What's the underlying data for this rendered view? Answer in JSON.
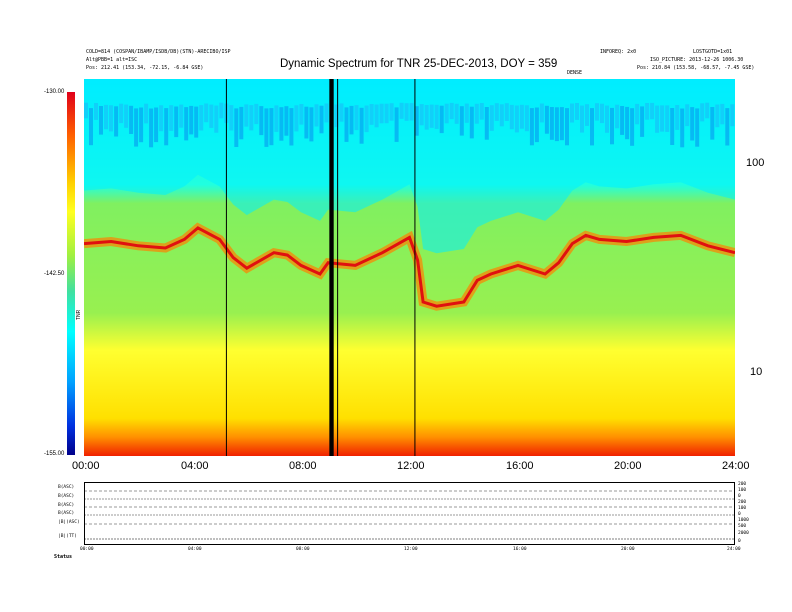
{
  "header": {
    "left_lines": [
      "COLD=814 (COSPAN/IBAMP/ISDB/DB)(STN)-ARECIBO/ISP",
      "Alt@PBB=1 alt=ISC",
      "Pos: 212.41 (153.34, -72.15, -6.84 GSE)"
    ],
    "right_lines": [
      "INFOREQ: 2x0",
      "LOSTGOTD=1x01",
      "ISO_PICTURE: 2013-12-26 1006.30",
      "Pos: 210.84 (153.58, -68.57, -7.45 GSE)"
    ],
    "center_tag": "DENSE"
  },
  "chart_data": {
    "type": "heatmap",
    "title": "Dynamic Spectrum for TNR 25-DEC-2013, DOY = 359",
    "x_ticks": [
      "00:00",
      "04:00",
      "08:00",
      "12:00",
      "16:00",
      "20:00",
      "24:00"
    ],
    "xlim": [
      0,
      24
    ],
    "y_scale": "log",
    "y_ticks": [
      "100",
      "10"
    ],
    "y_tick_values": [
      100,
      10
    ],
    "ylim": [
      4,
      260
    ],
    "colorbar": {
      "label": "TNR",
      "ticks": [
        "-130.00",
        "-142.50",
        "-155.00"
      ],
      "tick_values": [
        -130,
        -142.5,
        -155
      ],
      "range": [
        -155,
        -130
      ]
    },
    "plasma_line": {
      "x": [
        0,
        1,
        2,
        3,
        3.7,
        4.2,
        5,
        5.5,
        6,
        7,
        7.5,
        8,
        8.7,
        9,
        10,
        11,
        12,
        12.3,
        12.5,
        13,
        14,
        14.5,
        15,
        16,
        17,
        17.5,
        18,
        18.5,
        19,
        20,
        21,
        22,
        23,
        24
      ],
      "y": [
        42,
        43,
        41,
        40,
        44,
        50,
        44,
        36,
        32,
        38,
        37,
        33,
        30,
        34,
        33,
        38,
        45,
        35,
        22,
        21,
        22,
        28,
        30,
        33,
        30,
        34,
        42,
        46,
        44,
        43,
        45,
        46,
        41,
        38
      ]
    },
    "time_markers": [
      5.25,
      9.1,
      9.15,
      9.35,
      12.2
    ]
  },
  "colors": {
    "background": "#ffffff",
    "axis": "#000000"
  },
  "bottom_panel": {
    "row_labels": [
      "B(ASC)",
      "B(ASC)",
      "B(ASC)",
      "B(ASC)",
      "|B|(ASC)",
      "|B|(TT)"
    ],
    "right_labels": [
      "200",
      "100",
      "0",
      "200",
      "100",
      "0",
      "1000",
      "500",
      "2000",
      "0"
    ],
    "x_ticks": [
      "00:00",
      "04:00",
      "08:00",
      "12:00",
      "16:00",
      "20:00",
      "24:00"
    ],
    "status_label": "Status"
  }
}
